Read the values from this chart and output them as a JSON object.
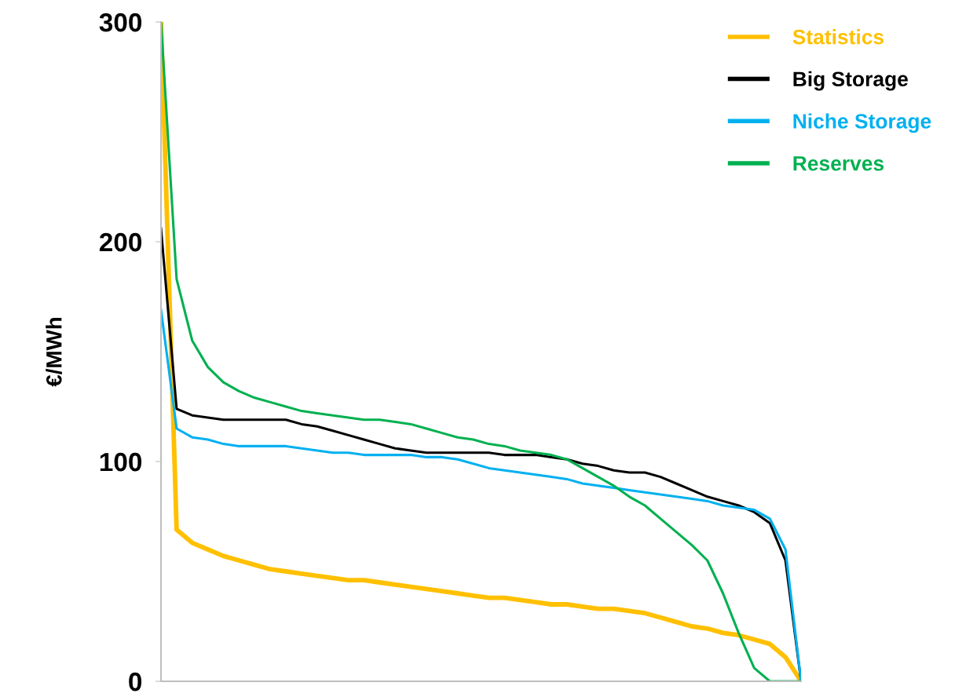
{
  "chart_data": {
    "type": "line",
    "ylabel": "€/MWh",
    "categories": [
      null,
      null,
      null,
      null,
      null,
      null,
      null,
      null,
      null,
      null,
      null,
      null,
      null,
      null,
      null,
      null,
      null,
      null,
      null,
      null,
      null,
      null,
      null,
      null,
      null,
      null,
      null,
      null,
      null,
      null,
      null,
      null,
      null,
      null,
      null,
      null,
      null,
      null,
      null,
      null,
      null,
      null
    ],
    "ylim": [
      0,
      300
    ],
    "yticks": [
      0,
      100,
      200,
      300
    ],
    "grid": false,
    "legend": "top right",
    "marker": "none",
    "line_style": "solid",
    "tick_labels": "y",
    "series": [
      {
        "name": "Statistics",
        "color": "#ffc000",
        "values": [
          300,
          69,
          63,
          60,
          57,
          55,
          53,
          51,
          50,
          49,
          48,
          47,
          46,
          46,
          45,
          44,
          43,
          42,
          41,
          40,
          39,
          38,
          38,
          37,
          36,
          35,
          35,
          34,
          33,
          33,
          32,
          31,
          29,
          27,
          25,
          24,
          22,
          21,
          19,
          17,
          11,
          0
        ]
      },
      {
        "name": "Big Storage",
        "color": "#000000",
        "values": [
          206,
          124,
          121,
          120,
          119,
          119,
          119,
          119,
          119,
          117,
          116,
          114,
          112,
          110,
          108,
          106,
          105,
          104,
          104,
          104,
          104,
          104,
          103,
          103,
          103,
          102,
          101,
          99,
          98,
          96,
          95,
          95,
          93,
          90,
          87,
          84,
          82,
          80,
          77,
          72,
          55,
          0
        ]
      },
      {
        "name": "Niche Storage",
        "color": "#00b0f0",
        "values": [
          169,
          115,
          111,
          110,
          108,
          107,
          107,
          107,
          107,
          106,
          105,
          104,
          104,
          103,
          103,
          103,
          103,
          102,
          102,
          101,
          99,
          97,
          96,
          95,
          94,
          93,
          92,
          90,
          89,
          88,
          87,
          86,
          85,
          84,
          83,
          82,
          80,
          79,
          78,
          74,
          60,
          0
        ]
      },
      {
        "name": "Reserves",
        "color": "#00b050",
        "values": [
          300,
          183,
          155,
          143,
          136,
          132,
          129,
          127,
          125,
          123,
          122,
          121,
          120,
          119,
          119,
          118,
          117,
          115,
          113,
          111,
          110,
          108,
          107,
          105,
          104,
          103,
          101,
          97,
          93,
          89,
          84,
          80,
          74,
          68,
          62,
          55,
          40,
          22,
          6,
          0,
          0,
          0
        ]
      }
    ]
  }
}
